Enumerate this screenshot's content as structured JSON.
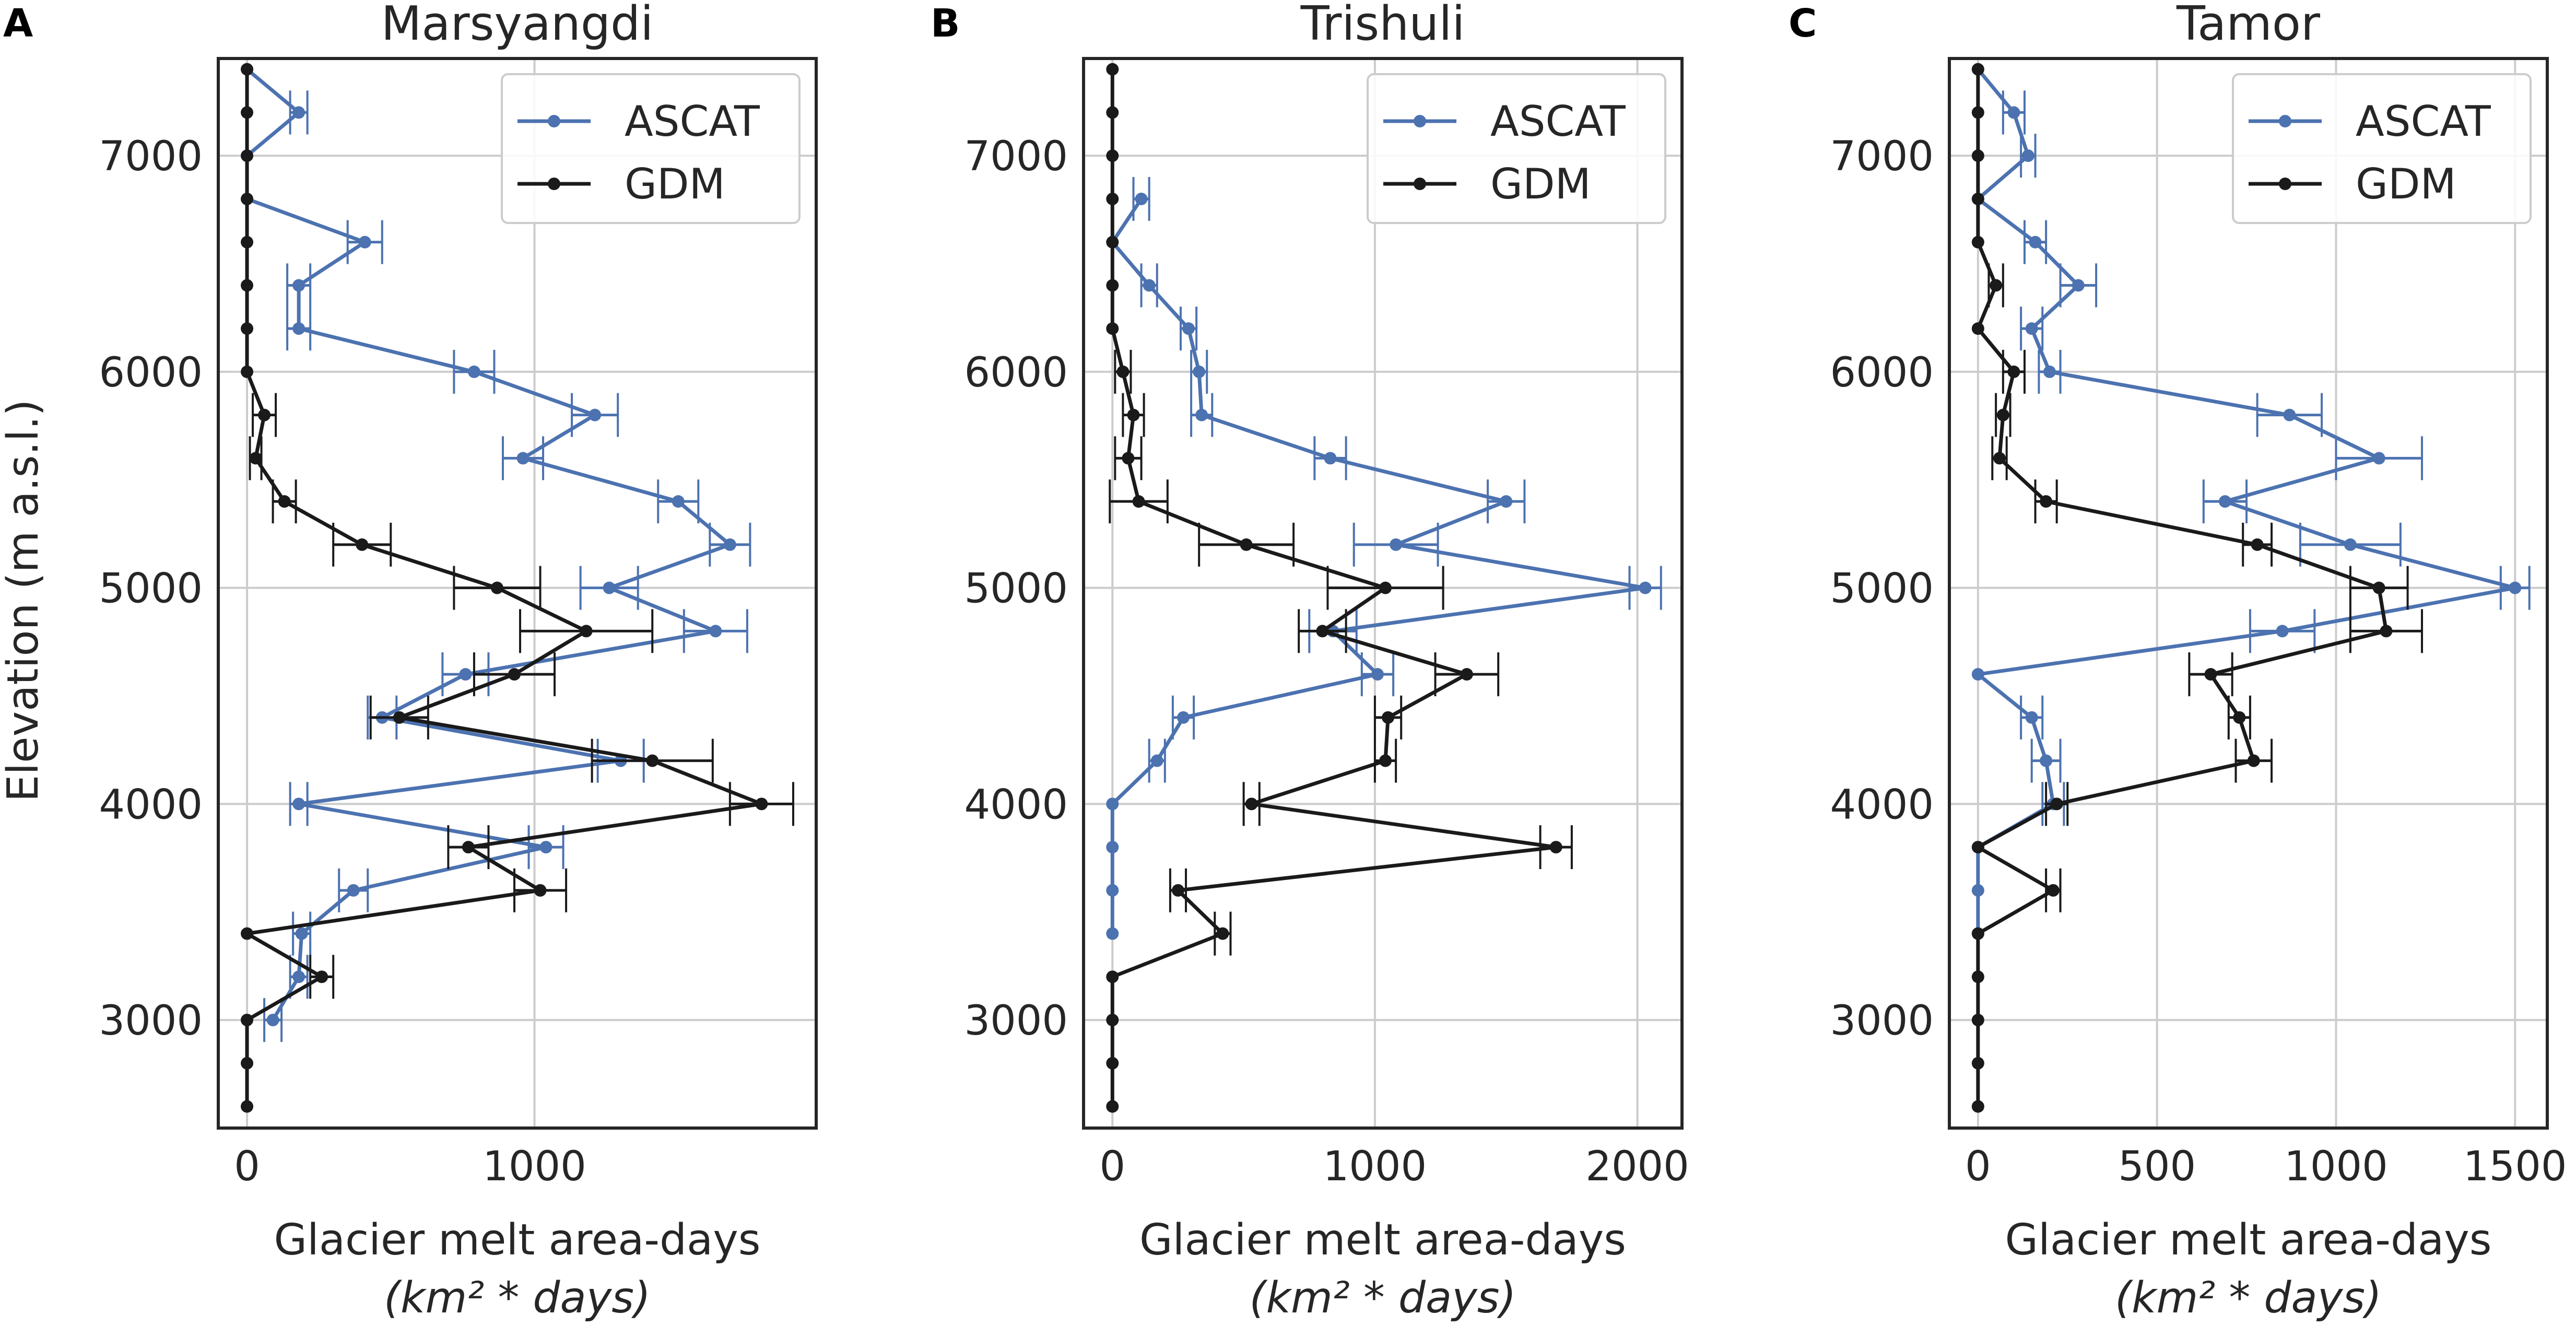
{
  "figure": {
    "ylabel": "Elevation (m a.s.l.)",
    "xlabel_line1": "Glacier melt area-days",
    "xlabel_line2": "(km² * days)"
  },
  "colors": {
    "ascat": "#4c72b0",
    "gdm": "#1a1a1a",
    "grid": "#cccccc",
    "frame": "#262626"
  },
  "chart_data": [
    {
      "type": "line",
      "panel_letter": "A",
      "title": "Marsyangdi",
      "xlabel": "Glacier melt area-days (km² * days)",
      "ylabel": "Elevation (m a.s.l.)",
      "xlim": [
        -100,
        1980
      ],
      "ylim": [
        2500,
        7450
      ],
      "xticks": [
        0,
        1000
      ],
      "xtick_labels": [
        "0",
        "1000"
      ],
      "yticks": [
        3000,
        4000,
        5000,
        6000,
        7000
      ],
      "ytick_labels": [
        "3000",
        "4000",
        "5000",
        "6000",
        "7000"
      ],
      "grid": true,
      "legend": {
        "position": "top-right",
        "entries": [
          "ASCAT",
          "GDM"
        ]
      },
      "series": [
        {
          "name": "ASCAT",
          "points": [
            {
              "elev": 3000,
              "value": 90,
              "err": 30
            },
            {
              "elev": 3200,
              "value": 180,
              "err": 30
            },
            {
              "elev": 3400,
              "value": 190,
              "err": 30
            },
            {
              "elev": 3600,
              "value": 370,
              "err": 50
            },
            {
              "elev": 3800,
              "value": 1040,
              "err": 60
            },
            {
              "elev": 4000,
              "value": 180,
              "err": 30
            },
            {
              "elev": 4200,
              "value": 1300,
              "err": 80
            },
            {
              "elev": 4400,
              "value": 470,
              "err": 50
            },
            {
              "elev": 4600,
              "value": 760,
              "err": 80
            },
            {
              "elev": 4800,
              "value": 1630,
              "err": 110
            },
            {
              "elev": 5000,
              "value": 1260,
              "err": 100
            },
            {
              "elev": 5200,
              "value": 1680,
              "err": 70
            },
            {
              "elev": 5400,
              "value": 1500,
              "err": 70
            },
            {
              "elev": 5600,
              "value": 960,
              "err": 70
            },
            {
              "elev": 5800,
              "value": 1210,
              "err": 80
            },
            {
              "elev": 6000,
              "value": 790,
              "err": 70
            },
            {
              "elev": 6200,
              "value": 180,
              "err": 40
            },
            {
              "elev": 6400,
              "value": 180,
              "err": 40
            },
            {
              "elev": 6600,
              "value": 410,
              "err": 60
            },
            {
              "elev": 6800,
              "value": 0,
              "err": 0
            },
            {
              "elev": 7000,
              "value": 0,
              "err": 0
            },
            {
              "elev": 7200,
              "value": 180,
              "err": 30
            },
            {
              "elev": 7400,
              "value": 0,
              "err": 0
            }
          ]
        },
        {
          "name": "GDM",
          "points": [
            {
              "elev": 2600,
              "value": 0,
              "err": 0
            },
            {
              "elev": 2800,
              "value": 0,
              "err": 0
            },
            {
              "elev": 3000,
              "value": 0,
              "err": 0
            },
            {
              "elev": 3200,
              "value": 260,
              "err": 40
            },
            {
              "elev": 3400,
              "value": 0,
              "err": 0
            },
            {
              "elev": 3600,
              "value": 1020,
              "err": 90
            },
            {
              "elev": 3800,
              "value": 770,
              "err": 70
            },
            {
              "elev": 4000,
              "value": 1790,
              "err": 110
            },
            {
              "elev": 4200,
              "value": 1410,
              "err": 210
            },
            {
              "elev": 4400,
              "value": 530,
              "err": 100
            },
            {
              "elev": 4600,
              "value": 930,
              "err": 140
            },
            {
              "elev": 4800,
              "value": 1180,
              "err": 230
            },
            {
              "elev": 5000,
              "value": 870,
              "err": 150
            },
            {
              "elev": 5200,
              "value": 400,
              "err": 100
            },
            {
              "elev": 5400,
              "value": 130,
              "err": 40
            },
            {
              "elev": 5600,
              "value": 30,
              "err": 20
            },
            {
              "elev": 5800,
              "value": 60,
              "err": 40
            },
            {
              "elev": 6000,
              "value": 0,
              "err": 0
            },
            {
              "elev": 6200,
              "value": 0,
              "err": 0
            },
            {
              "elev": 6400,
              "value": 0,
              "err": 0
            },
            {
              "elev": 6600,
              "value": 0,
              "err": 0
            },
            {
              "elev": 6800,
              "value": 0,
              "err": 0
            },
            {
              "elev": 7000,
              "value": 0,
              "err": 0
            },
            {
              "elev": 7200,
              "value": 0,
              "err": 0
            },
            {
              "elev": 7400,
              "value": 0,
              "err": 0
            }
          ]
        }
      ]
    },
    {
      "type": "line",
      "panel_letter": "B",
      "title": "Trishuli",
      "xlabel": "Glacier melt area-days (km² * days)",
      "ylabel": "",
      "xlim": [
        -110,
        2170
      ],
      "ylim": [
        2500,
        7450
      ],
      "xticks": [
        0,
        1000,
        2000
      ],
      "xtick_labels": [
        "0",
        "1000",
        "2000"
      ],
      "yticks": [
        3000,
        4000,
        5000,
        6000,
        7000
      ],
      "ytick_labels": [
        "3000",
        "4000",
        "5000",
        "6000",
        "7000"
      ],
      "grid": true,
      "legend": {
        "position": "top-right",
        "entries": [
          "ASCAT",
          "GDM"
        ]
      },
      "series": [
        {
          "name": "ASCAT",
          "points": [
            {
              "elev": 3400,
              "value": 0,
              "err": 0
            },
            {
              "elev": 3600,
              "value": 0,
              "err": 0
            },
            {
              "elev": 3800,
              "value": 0,
              "err": 0
            },
            {
              "elev": 4000,
              "value": 0,
              "err": 0
            },
            {
              "elev": 4200,
              "value": 170,
              "err": 30
            },
            {
              "elev": 4400,
              "value": 270,
              "err": 40
            },
            {
              "elev": 4600,
              "value": 1010,
              "err": 60
            },
            {
              "elev": 4800,
              "value": 840,
              "err": 90
            },
            {
              "elev": 5000,
              "value": 2030,
              "err": 60
            },
            {
              "elev": 5200,
              "value": 1080,
              "err": 160
            },
            {
              "elev": 5400,
              "value": 1500,
              "err": 70
            },
            {
              "elev": 5600,
              "value": 830,
              "err": 60
            },
            {
              "elev": 5800,
              "value": 340,
              "err": 40
            },
            {
              "elev": 6000,
              "value": 330,
              "err": 30
            },
            {
              "elev": 6200,
              "value": 290,
              "err": 30
            },
            {
              "elev": 6400,
              "value": 140,
              "err": 30
            },
            {
              "elev": 6600,
              "value": 0,
              "err": 0
            },
            {
              "elev": 6800,
              "value": 110,
              "err": 30
            }
          ]
        },
        {
          "name": "GDM",
          "points": [
            {
              "elev": 2600,
              "value": 0,
              "err": 0
            },
            {
              "elev": 2800,
              "value": 0,
              "err": 0
            },
            {
              "elev": 3000,
              "value": 0,
              "err": 0
            },
            {
              "elev": 3200,
              "value": 0,
              "err": 0
            },
            {
              "elev": 3400,
              "value": 420,
              "err": 30
            },
            {
              "elev": 3600,
              "value": 250,
              "err": 30
            },
            {
              "elev": 3800,
              "value": 1690,
              "err": 60
            },
            {
              "elev": 4000,
              "value": 530,
              "err": 30
            },
            {
              "elev": 4200,
              "value": 1040,
              "err": 40
            },
            {
              "elev": 4400,
              "value": 1050,
              "err": 50
            },
            {
              "elev": 4600,
              "value": 1350,
              "err": 120
            },
            {
              "elev": 4800,
              "value": 800,
              "err": 90
            },
            {
              "elev": 5000,
              "value": 1040,
              "err": 220
            },
            {
              "elev": 5200,
              "value": 510,
              "err": 180
            },
            {
              "elev": 5400,
              "value": 100,
              "err": 110
            },
            {
              "elev": 5600,
              "value": 60,
              "err": 50
            },
            {
              "elev": 5800,
              "value": 80,
              "err": 40
            },
            {
              "elev": 6000,
              "value": 40,
              "err": 30
            },
            {
              "elev": 6200,
              "value": 0,
              "err": 0
            },
            {
              "elev": 6400,
              "value": 0,
              "err": 0
            },
            {
              "elev": 6600,
              "value": 0,
              "err": 0
            },
            {
              "elev": 6800,
              "value": 0,
              "err": 0
            },
            {
              "elev": 7000,
              "value": 0,
              "err": 0
            },
            {
              "elev": 7200,
              "value": 0,
              "err": 0
            },
            {
              "elev": 7400,
              "value": 0,
              "err": 0
            }
          ]
        }
      ]
    },
    {
      "type": "line",
      "panel_letter": "C",
      "title": "Tamor",
      "xlabel": "Glacier melt area-days (km² * days)",
      "ylabel": "",
      "xlim": [
        -80,
        1590
      ],
      "ylim": [
        2500,
        7450
      ],
      "xticks": [
        0,
        500,
        1000,
        1500
      ],
      "xtick_labels": [
        "0",
        "500",
        "1000",
        "1500"
      ],
      "yticks": [
        3000,
        4000,
        5000,
        6000,
        7000
      ],
      "ytick_labels": [
        "3000",
        "4000",
        "5000",
        "6000",
        "7000"
      ],
      "grid": true,
      "legend": {
        "position": "top-right",
        "entries": [
          "ASCAT",
          "GDM"
        ]
      },
      "series": [
        {
          "name": "ASCAT",
          "points": [
            {
              "elev": 3400,
              "value": 0,
              "err": 0
            },
            {
              "elev": 3600,
              "value": 0,
              "err": 0
            },
            {
              "elev": 3800,
              "value": 0,
              "err": 0
            },
            {
              "elev": 4000,
              "value": 210,
              "err": 30
            },
            {
              "elev": 4200,
              "value": 190,
              "err": 40
            },
            {
              "elev": 4400,
              "value": 150,
              "err": 30
            },
            {
              "elev": 4600,
              "value": 0,
              "err": 0
            },
            {
              "elev": 4800,
              "value": 850,
              "err": 90
            },
            {
              "elev": 5000,
              "value": 1500,
              "err": 40
            },
            {
              "elev": 5200,
              "value": 1040,
              "err": 140
            },
            {
              "elev": 5400,
              "value": 690,
              "err": 60
            },
            {
              "elev": 5600,
              "value": 1120,
              "err": 120
            },
            {
              "elev": 5800,
              "value": 870,
              "err": 90
            },
            {
              "elev": 6000,
              "value": 200,
              "err": 30
            },
            {
              "elev": 6200,
              "value": 150,
              "err": 30
            },
            {
              "elev": 6400,
              "value": 280,
              "err": 50
            },
            {
              "elev": 6600,
              "value": 160,
              "err": 30
            },
            {
              "elev": 6800,
              "value": 0,
              "err": 0
            },
            {
              "elev": 7000,
              "value": 140,
              "err": 20
            },
            {
              "elev": 7200,
              "value": 100,
              "err": 30
            },
            {
              "elev": 7400,
              "value": 0,
              "err": 0
            }
          ]
        },
        {
          "name": "GDM",
          "points": [
            {
              "elev": 2600,
              "value": 0,
              "err": 0
            },
            {
              "elev": 2800,
              "value": 0,
              "err": 0
            },
            {
              "elev": 3000,
              "value": 0,
              "err": 0
            },
            {
              "elev": 3200,
              "value": 0,
              "err": 0
            },
            {
              "elev": 3400,
              "value": 0,
              "err": 0
            },
            {
              "elev": 3600,
              "value": 210,
              "err": 20
            },
            {
              "elev": 3800,
              "value": 0,
              "err": 0
            },
            {
              "elev": 4000,
              "value": 220,
              "err": 30
            },
            {
              "elev": 4200,
              "value": 770,
              "err": 50
            },
            {
              "elev": 4400,
              "value": 730,
              "err": 30
            },
            {
              "elev": 4600,
              "value": 650,
              "err": 60
            },
            {
              "elev": 4800,
              "value": 1140,
              "err": 100
            },
            {
              "elev": 5000,
              "value": 1120,
              "err": 80
            },
            {
              "elev": 5200,
              "value": 780,
              "err": 40
            },
            {
              "elev": 5400,
              "value": 190,
              "err": 30
            },
            {
              "elev": 5600,
              "value": 60,
              "err": 20
            },
            {
              "elev": 5800,
              "value": 70,
              "err": 20
            },
            {
              "elev": 6000,
              "value": 100,
              "err": 30
            },
            {
              "elev": 6200,
              "value": 0,
              "err": 0
            },
            {
              "elev": 6400,
              "value": 50,
              "err": 20
            },
            {
              "elev": 6600,
              "value": 0,
              "err": 0
            },
            {
              "elev": 6800,
              "value": 0,
              "err": 0
            },
            {
              "elev": 7000,
              "value": 0,
              "err": 0
            },
            {
              "elev": 7200,
              "value": 0,
              "err": 0
            },
            {
              "elev": 7400,
              "value": 0,
              "err": 0
            }
          ]
        }
      ]
    }
  ]
}
